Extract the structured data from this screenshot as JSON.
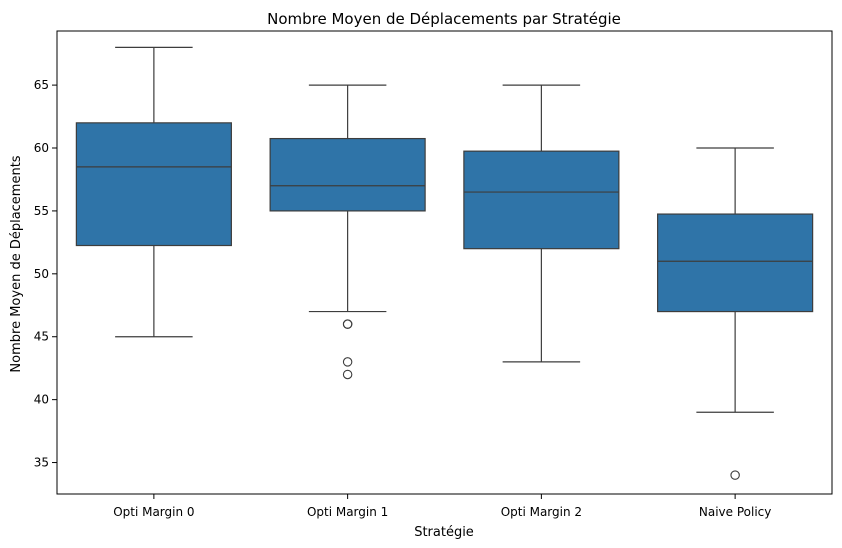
{
  "chart_data": {
    "type": "box",
    "title": "Nombre Moyen de Déplacements par Stratégie",
    "xlabel": "Stratégie",
    "ylabel": "Nombre Moyen de Déplacements",
    "ylim": [
      32.5,
      69.3
    ],
    "yticks": [
      35,
      40,
      45,
      50,
      55,
      60,
      65
    ],
    "grid": false,
    "color": "#2f74a8",
    "categories": [
      "Opti Margin 0",
      "Opti Margin 1",
      "Opti Margin 2",
      "Naive Policy"
    ],
    "boxes": [
      {
        "category": "Opti Margin 0",
        "whisker_low": 45,
        "q1": 52.25,
        "median": 58.5,
        "q3": 62,
        "whisker_high": 68,
        "outliers": []
      },
      {
        "category": "Opti Margin 1",
        "whisker_low": 47,
        "q1": 55,
        "median": 57,
        "q3": 60.75,
        "whisker_high": 65,
        "outliers": [
          46,
          46,
          43,
          42
        ]
      },
      {
        "category": "Opti Margin 2",
        "whisker_low": 43,
        "q1": 52,
        "median": 56.5,
        "q3": 59.75,
        "whisker_high": 65,
        "outliers": []
      },
      {
        "category": "Naive Policy",
        "whisker_low": 39,
        "q1": 47,
        "median": 51,
        "q3": 54.75,
        "whisker_high": 60,
        "outliers": [
          34
        ]
      }
    ]
  }
}
